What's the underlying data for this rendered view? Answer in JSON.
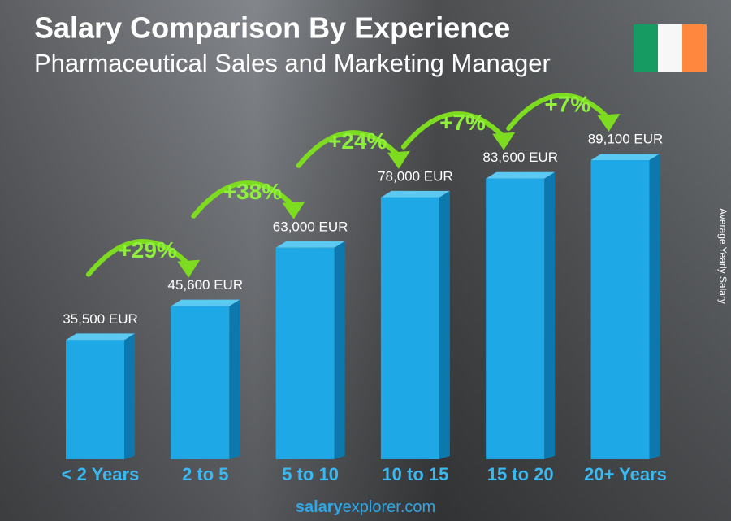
{
  "chart_data": {
    "type": "bar3d",
    "title": "Salary Comparison By Experience",
    "subtitle": "Pharmaceutical Sales and Marketing Manager",
    "y_label": "Average Yearly Salary",
    "categories": [
      "< 2 Years",
      "2 to 5",
      "5 to 10",
      "10 to 15",
      "15 to 20",
      "20+ Years"
    ],
    "values": [
      35500,
      45600,
      63000,
      78000,
      83600,
      89100
    ],
    "value_labels": [
      "35,500 EUR",
      "45,600 EUR",
      "63,000 EUR",
      "78,000 EUR",
      "83,600 EUR",
      "89,100 EUR"
    ],
    "changes": [
      {
        "value": 29,
        "label": "+29%"
      },
      {
        "value": 38,
        "label": "+38%"
      },
      {
        "value": 24,
        "label": "+24%"
      },
      {
        "value": 7,
        "label": "+7%"
      },
      {
        "value": 7,
        "label": "+7%"
      }
    ],
    "color": "#1ea8e6",
    "footer": {
      "bold": "salary",
      "rest": "explorer.com"
    }
  }
}
